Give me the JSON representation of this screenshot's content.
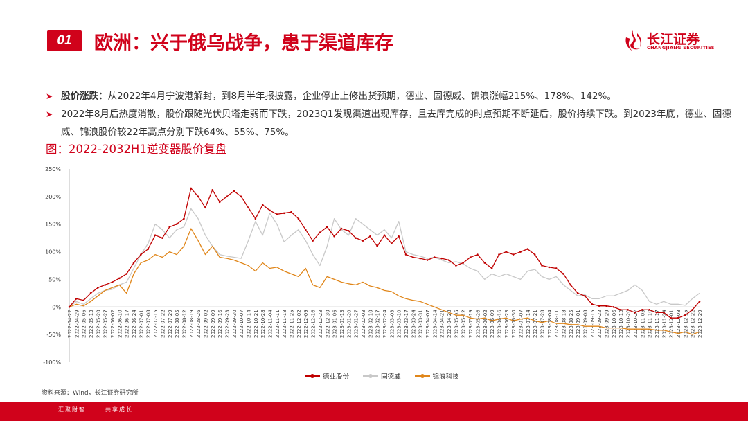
{
  "header": {
    "badge": "01",
    "title": "欧洲：兴于俄乌战争，患于渠道库存",
    "logo_cn": "长江证券",
    "logo_en": "CHANGJIANG SECURITIES"
  },
  "bullets": [
    {
      "bold": "股价涨跌：",
      "text": "从2022年4月宁波港解封，到8月半年报披露，企业停止上修出货预期，德业、固德威、锦浪涨幅215%、178%、142%。"
    },
    {
      "bold": "",
      "text": "2022年8月后热度消散，股价跟随光伏贝塔走弱而下跌，2023Q1发现渠道出现库存，且去库完成的时点预期不断延后，股价持续下跌。到2023年底，德业、固德威、锦浪股价较22年高点分别下跌64%、55%、75%。"
    }
  ],
  "chart_title": "图：2022-2032H1逆变器股价复盘",
  "source": "资料来源：Wind，长江证券研究所",
  "footer": {
    "left": "汇聚财智",
    "right": "共享成长"
  },
  "colors": {
    "brand": "#d0021b",
    "deye": "#c00000",
    "goodwe": "#c8c8c8",
    "ginlong": "#e0861a"
  },
  "chart_data": {
    "type": "line",
    "ylim": [
      -100,
      250
    ],
    "yticks": [
      "250%",
      "200%",
      "150%",
      "100%",
      "50%",
      "0%",
      "-50%",
      "-100%"
    ],
    "categories": [
      "2022-04-22",
      "2022-04-29",
      "2022-05-06",
      "2022-05-13",
      "2022-05-20",
      "2022-05-27",
      "2022-06-03",
      "2022-06-10",
      "2022-06-17",
      "2022-06-24",
      "2022-07-01",
      "2022-07-08",
      "2022-07-15",
      "2022-07-22",
      "2022-07-29",
      "2022-08-05",
      "2022-08-12",
      "2022-08-19",
      "2022-08-26",
      "2022-09-02",
      "2022-09-09",
      "2022-09-16",
      "2022-09-23",
      "2022-09-30",
      "2022-10-07",
      "2022-10-14",
      "2022-10-21",
      "2022-10-28",
      "2022-11-04",
      "2022-11-11",
      "2022-11-18",
      "2022-11-25",
      "2022-12-02",
      "2022-12-09",
      "2022-12-16",
      "2022-12-23",
      "2022-12-30",
      "2023-01-06",
      "2023-01-13",
      "2023-01-20",
      "2023-01-27",
      "2023-02-03",
      "2023-02-10",
      "2023-02-17",
      "2023-02-24",
      "2023-03-03",
      "2023-03-10",
      "2023-03-17",
      "2023-03-24",
      "2023-03-31",
      "2023-04-07",
      "2023-04-14",
      "2023-04-21",
      "2023-04-28",
      "2023-05-05",
      "2023-05-12",
      "2023-05-19",
      "2023-05-26",
      "2023-06-02",
      "2023-06-09",
      "2023-06-16",
      "2023-06-23",
      "2023-06-30",
      "2023-07-07",
      "2023-07-14",
      "2023-07-21",
      "2023-07-28",
      "2023-08-04",
      "2023-08-11",
      "2023-08-18",
      "2023-08-25",
      "2023-09-01",
      "2023-09-08",
      "2023-09-15",
      "2023-09-22",
      "2023-09-29",
      "2023-10-06",
      "2023-10-13",
      "2023-10-20",
      "2023-10-27",
      "2023-11-03",
      "2023-11-10",
      "2023-11-17",
      "2023-11-24",
      "2023-12-01",
      "2023-12-08",
      "2023-12-15",
      "2023-12-22",
      "2023-12-29"
    ],
    "xticks": [
      "2022-04-22",
      "2022-04-29",
      "2022-05-06",
      "2022-05-13",
      "2022-05-20",
      "2022-05-27",
      "2022-06-02",
      "2022-06-10",
      "2022-06-17",
      "2022-06-24",
      "2022-07-01",
      "2022-07-08",
      "2022-07-15",
      "2022-07-22",
      "2022-07-29",
      "2022-08-05",
      "2022-08-12",
      "2022-08-19",
      "2022-08-26",
      "2022-09-02",
      "2022-09-09",
      "2022-09-16",
      "2022-09-23",
      "2022-09-30",
      "2022-10-07",
      "2022-10-14",
      "2022-10-21",
      "2022-10-28",
      "2022-11-04",
      "2022-11-11",
      "2022-11-18",
      "2022-11-25",
      "2022-12-02",
      "2022-12-09",
      "2022-12-16",
      "2022-12-23",
      "2022-12-30",
      "2023-01-06",
      "2023-01-13",
      "2023-01-20",
      "2023-01-27",
      "2023-02-03",
      "2023-02-10",
      "2023-02-17",
      "2023-02-24",
      "2023-03-03",
      "2023-03-10",
      "2023-03-17",
      "2023-03-24",
      "2023-03-31",
      "2023-04-07",
      "2023-04-14",
      "2023-04-21",
      "2023-04-28",
      "2023-05-05",
      "2023-05-12",
      "2023-05-19",
      "2023-05-26",
      "2023-06-02",
      "2023-06-09",
      "2023-06-16",
      "2023-06-23",
      "2023-06-30",
      "2023-07-07",
      "2023-07-14",
      "2023-07-21",
      "2023-07-28",
      "2023-08-04",
      "2023-08-11",
      "2023-08-18",
      "2023-08-25",
      "2023-09-01",
      "2023-09-08",
      "2023-09-15",
      "2023-09-22",
      "2023-09-29",
      "2023-10-06",
      "2023-10-13",
      "2023-10-20",
      "2023-10-27",
      "2023-11-03",
      "2023-11-10",
      "2023-11-17",
      "2023-11-24",
      "2023-12-01",
      "2023-12-08",
      "2023-12-15",
      "2023-12-22",
      "2023-12-29"
    ],
    "series": [
      {
        "name": "德业股份",
        "color": "#c00000",
        "marker": true,
        "values": [
          0,
          15,
          12,
          25,
          35,
          40,
          45,
          52,
          60,
          80,
          95,
          105,
          130,
          125,
          145,
          150,
          160,
          215,
          200,
          180,
          212,
          190,
          200,
          210,
          200,
          180,
          160,
          185,
          175,
          168,
          170,
          172,
          160,
          140,
          120,
          135,
          145,
          128,
          142,
          138,
          125,
          120,
          128,
          110,
          130,
          115,
          128,
          95,
          90,
          88,
          85,
          90,
          88,
          85,
          75,
          80,
          90,
          95,
          80,
          70,
          95,
          100,
          95,
          100,
          105,
          95,
          75,
          72,
          70,
          60,
          40,
          25,
          20,
          5,
          2,
          2,
          0,
          -5,
          -5,
          -10,
          -5,
          -5,
          -10,
          -10,
          -20,
          -20,
          -15,
          -5,
          10
        ]
      },
      {
        "name": "固德威",
        "color": "#c8c8c8",
        "marker": false,
        "values": [
          0,
          10,
          5,
          15,
          25,
          30,
          32,
          40,
          45,
          70,
          95,
          115,
          150,
          140,
          125,
          140,
          145,
          178,
          160,
          130,
          110,
          95,
          92,
          90,
          88,
          120,
          155,
          130,
          170,
          150,
          118,
          130,
          140,
          120,
          95,
          75,
          110,
          160,
          140,
          130,
          160,
          150,
          140,
          130,
          140,
          125,
          155,
          100,
          95,
          92,
          88,
          90,
          85,
          80,
          82,
          78,
          70,
          65,
          50,
          60,
          55,
          60,
          55,
          50,
          65,
          68,
          55,
          50,
          55,
          40,
          30,
          20,
          22,
          15,
          15,
          20,
          20,
          25,
          30,
          40,
          30,
          10,
          5,
          10,
          5,
          5,
          3,
          15,
          25
        ]
      },
      {
        "name": "锦浪科技",
        "color": "#e0861a",
        "marker": false,
        "values": [
          0,
          5,
          2,
          10,
          20,
          30,
          35,
          40,
          25,
          60,
          80,
          85,
          95,
          90,
          100,
          95,
          110,
          142,
          120,
          95,
          110,
          90,
          88,
          85,
          80,
          75,
          65,
          80,
          70,
          72,
          65,
          60,
          55,
          70,
          40,
          35,
          55,
          50,
          45,
          42,
          40,
          45,
          38,
          35,
          30,
          28,
          20,
          15,
          12,
          10,
          5,
          0,
          -5,
          -10,
          -15,
          -15,
          -20,
          -22,
          -20,
          -25,
          -22,
          -20,
          -25,
          -22,
          -20,
          -25,
          -28,
          -25,
          -30,
          -30,
          -32,
          -32,
          -35,
          -35,
          -35,
          -38,
          -38,
          -38,
          -40,
          -40,
          -40,
          -40,
          -42,
          -42,
          -45,
          -48,
          -45,
          -50,
          -45
        ]
      }
    ]
  }
}
